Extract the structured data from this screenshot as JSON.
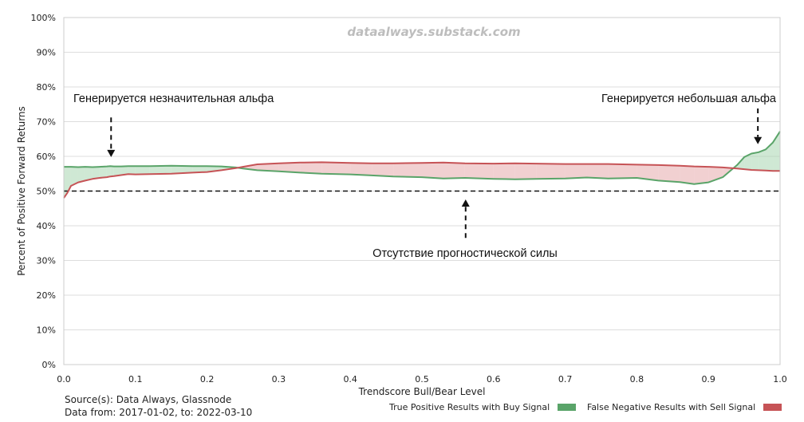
{
  "watermark": "dataalways.substack.com",
  "footer": {
    "source": "Source(s): Data Always, Glassnode",
    "range": "Data from: 2017-01-02, to: 2022-03-10"
  },
  "chart_data": {
    "type": "line",
    "title": "",
    "xlabel": "Trendscore Bull/Bear Level",
    "ylabel": "Percent of Positive Forward Returns",
    "xlim": [
      0.0,
      1.0
    ],
    "ylim": [
      0,
      100
    ],
    "xticks": [
      "0.0",
      "0.1",
      "0.2",
      "0.3",
      "0.4",
      "0.5",
      "0.6",
      "0.7",
      "0.8",
      "0.9",
      "1.0"
    ],
    "yticks": [
      "0%",
      "10%",
      "20%",
      "30%",
      "40%",
      "50%",
      "60%",
      "70%",
      "80%",
      "90%",
      "100%"
    ],
    "grid": "horizontal",
    "legend_position": "bottom-right",
    "reference_line": {
      "y": 50,
      "style": "dashed"
    },
    "x": [
      0.0,
      0.005,
      0.01,
      0.02,
      0.03,
      0.04,
      0.05,
      0.06,
      0.065,
      0.07,
      0.08,
      0.09,
      0.1,
      0.12,
      0.15,
      0.18,
      0.2,
      0.22,
      0.24,
      0.25,
      0.27,
      0.3,
      0.33,
      0.36,
      0.4,
      0.43,
      0.46,
      0.5,
      0.53,
      0.56,
      0.6,
      0.63,
      0.66,
      0.7,
      0.73,
      0.76,
      0.8,
      0.83,
      0.86,
      0.88,
      0.9,
      0.92,
      0.94,
      0.95,
      0.96,
      0.97,
      0.98,
      0.99,
      1.0
    ],
    "series": [
      {
        "name": "True Positive Results with Buy Signal",
        "color": "#5aa469",
        "fill": "#a8d5b0",
        "values": [
          57.0,
          57.0,
          57.0,
          56.9,
          57.0,
          56.9,
          57.0,
          57.1,
          57.2,
          57.1,
          57.1,
          57.2,
          57.2,
          57.2,
          57.3,
          57.2,
          57.2,
          57.1,
          56.8,
          56.5,
          56.0,
          55.7,
          55.3,
          55.0,
          54.8,
          54.5,
          54.2,
          54.0,
          53.6,
          53.8,
          53.5,
          53.4,
          53.5,
          53.6,
          53.9,
          53.6,
          53.8,
          53.0,
          52.6,
          52.0,
          52.5,
          54.0,
          57.5,
          59.8,
          60.8,
          61.2,
          62.0,
          64.0,
          67.2
        ]
      },
      {
        "name": "False Negative Results with Sell Signal",
        "color": "#c65356",
        "fill": "#e6a9ab",
        "values": [
          48.0,
          49.5,
          51.5,
          52.5,
          53.0,
          53.5,
          53.8,
          54.0,
          54.2,
          54.3,
          54.6,
          54.9,
          54.8,
          54.9,
          55.0,
          55.3,
          55.5,
          56.0,
          56.6,
          57.0,
          57.7,
          58.0,
          58.2,
          58.3,
          58.1,
          58.0,
          58.0,
          58.1,
          58.2,
          58.0,
          57.9,
          58.0,
          57.9,
          57.8,
          57.8,
          57.8,
          57.6,
          57.5,
          57.3,
          57.1,
          57.0,
          56.8,
          56.5,
          56.3,
          56.1,
          56.0,
          55.9,
          55.8,
          55.8
        ]
      }
    ],
    "annotations": [
      {
        "text": "Генерируется незначительная альфа",
        "x": 0.066,
        "y_from": 71.2,
        "y_to": 59.8,
        "direction": "down"
      },
      {
        "text": "Отсутствие прогностической силы",
        "x": 0.561,
        "y_from": 36.5,
        "y_to": 47.6,
        "direction": "up"
      },
      {
        "text": "Генерируется небольшая альфа",
        "x": 0.969,
        "y_from": 73.8,
        "y_to": 63.5,
        "direction": "down"
      }
    ]
  }
}
